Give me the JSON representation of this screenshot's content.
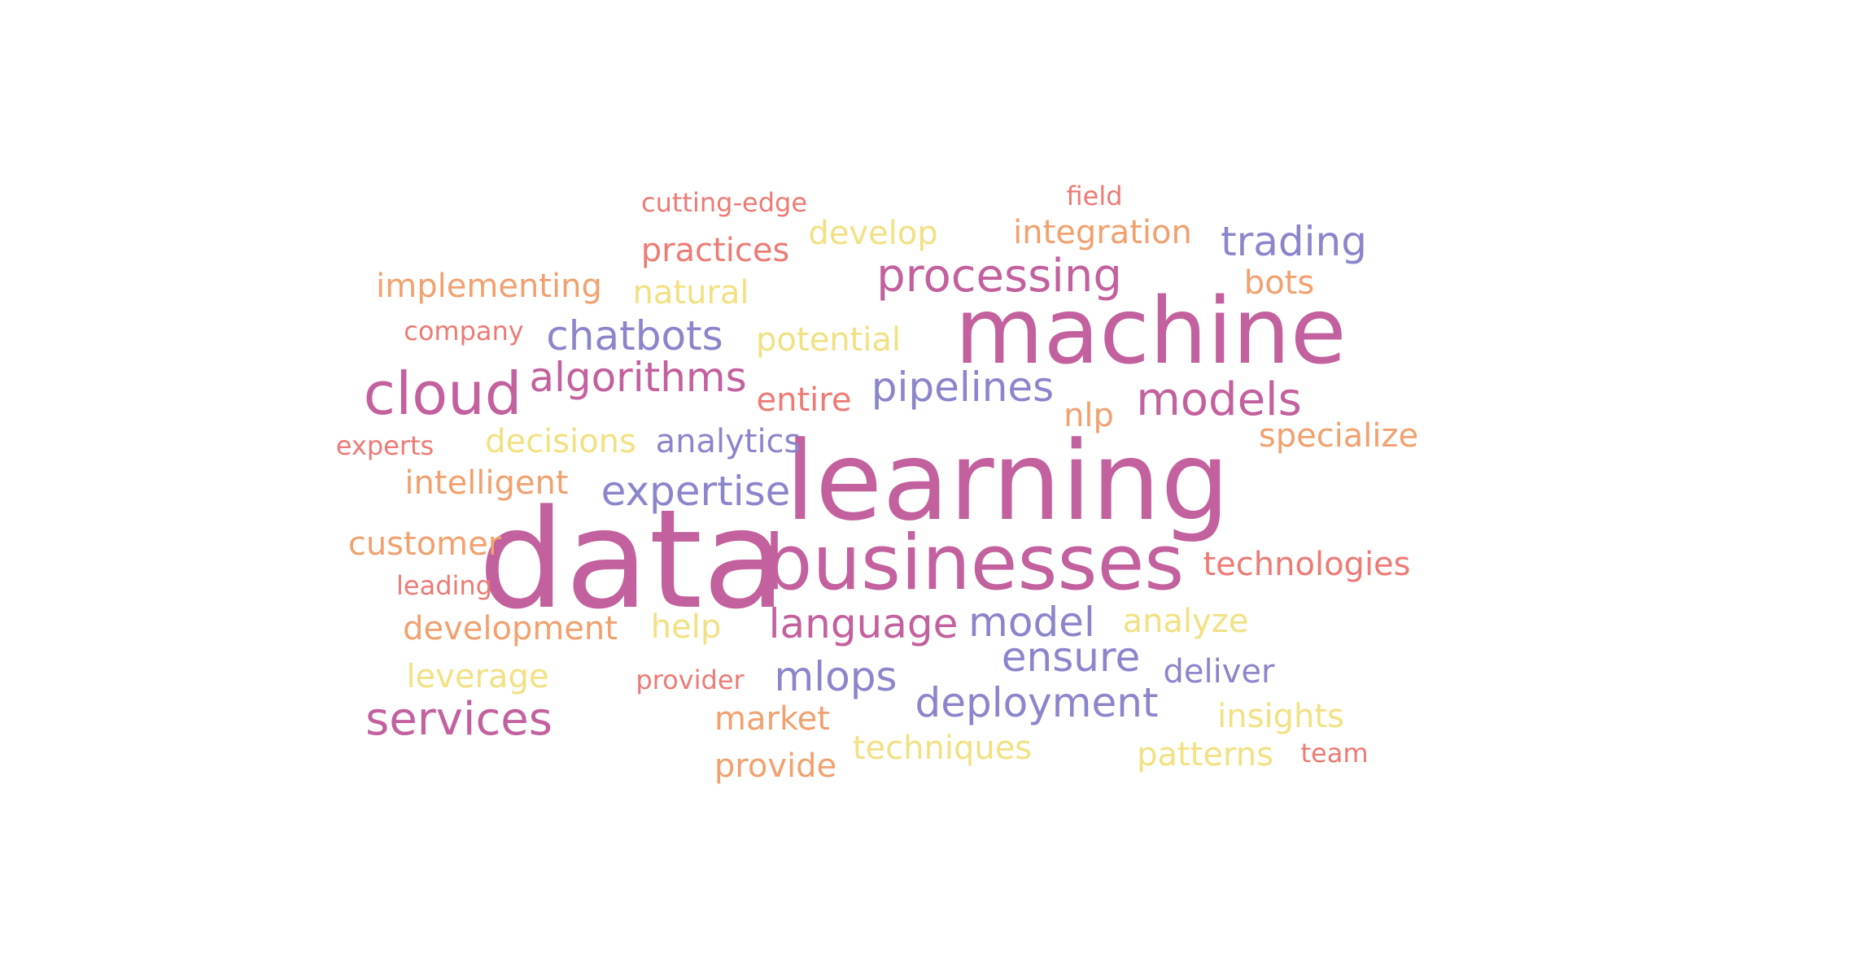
{
  "palette": {
    "magenta": "#c3609e",
    "purple": "#8b85cc",
    "salmon": "#ee7a74",
    "orange": "#f2a06e",
    "yellow": "#f2e182"
  },
  "words": [
    {
      "text": "data",
      "color": "#c3609e"
    },
    {
      "text": "learning",
      "color": "#c3609e"
    },
    {
      "text": "machine",
      "color": "#c3609e"
    },
    {
      "text": "businesses",
      "color": "#c3609e"
    },
    {
      "text": "cloud",
      "color": "#c3609e"
    },
    {
      "text": "processing",
      "color": "#c3609e"
    },
    {
      "text": "models",
      "color": "#c3609e"
    },
    {
      "text": "services",
      "color": "#c3609e"
    },
    {
      "text": "algorithms",
      "color": "#c3609e"
    },
    {
      "text": "language",
      "color": "#c3609e"
    },
    {
      "text": "trading",
      "color": "#8b85cc"
    },
    {
      "text": "chatbots",
      "color": "#8b85cc"
    },
    {
      "text": "pipelines",
      "color": "#8b85cc"
    },
    {
      "text": "expertise",
      "color": "#8b85cc"
    },
    {
      "text": "analytics",
      "color": "#8b85cc"
    },
    {
      "text": "model",
      "color": "#8b85cc"
    },
    {
      "text": "ensure",
      "color": "#8b85cc"
    },
    {
      "text": "mlops",
      "color": "#8b85cc"
    },
    {
      "text": "deployment",
      "color": "#8b85cc"
    },
    {
      "text": "deliver",
      "color": "#8b85cc"
    },
    {
      "text": "cutting-edge",
      "color": "#ee7a74"
    },
    {
      "text": "field",
      "color": "#ee7a74"
    },
    {
      "text": "practices",
      "color": "#ee7a74"
    },
    {
      "text": "company",
      "color": "#ee7a74"
    },
    {
      "text": "entire",
      "color": "#ee7a74"
    },
    {
      "text": "experts",
      "color": "#ee7a74"
    },
    {
      "text": "leading",
      "color": "#ee7a74"
    },
    {
      "text": "technologies",
      "color": "#ee7a74"
    },
    {
      "text": "provider",
      "color": "#ee7a74"
    },
    {
      "text": "team",
      "color": "#ee7a74"
    },
    {
      "text": "integration",
      "color": "#f2a06e"
    },
    {
      "text": "implementing",
      "color": "#f2a06e"
    },
    {
      "text": "bots",
      "color": "#f2a06e"
    },
    {
      "text": "nlp",
      "color": "#f2a06e"
    },
    {
      "text": "specialize",
      "color": "#f2a06e"
    },
    {
      "text": "intelligent",
      "color": "#f2a06e"
    },
    {
      "text": "customer",
      "color": "#f2a06e"
    },
    {
      "text": "development",
      "color": "#f2a06e"
    },
    {
      "text": "market",
      "color": "#f2a06e"
    },
    {
      "text": "provide",
      "color": "#f2a06e"
    },
    {
      "text": "develop",
      "color": "#f2e182"
    },
    {
      "text": "natural",
      "color": "#f2e182"
    },
    {
      "text": "potential",
      "color": "#f2e182"
    },
    {
      "text": "decisions",
      "color": "#f2e182"
    },
    {
      "text": "help",
      "color": "#f2e182"
    },
    {
      "text": "analyze",
      "color": "#f2e182"
    },
    {
      "text": "leverage",
      "color": "#f2e182"
    },
    {
      "text": "insights",
      "color": "#f2e182"
    },
    {
      "text": "techniques",
      "color": "#f2e182"
    },
    {
      "text": "patterns",
      "color": "#f2e182"
    }
  ]
}
